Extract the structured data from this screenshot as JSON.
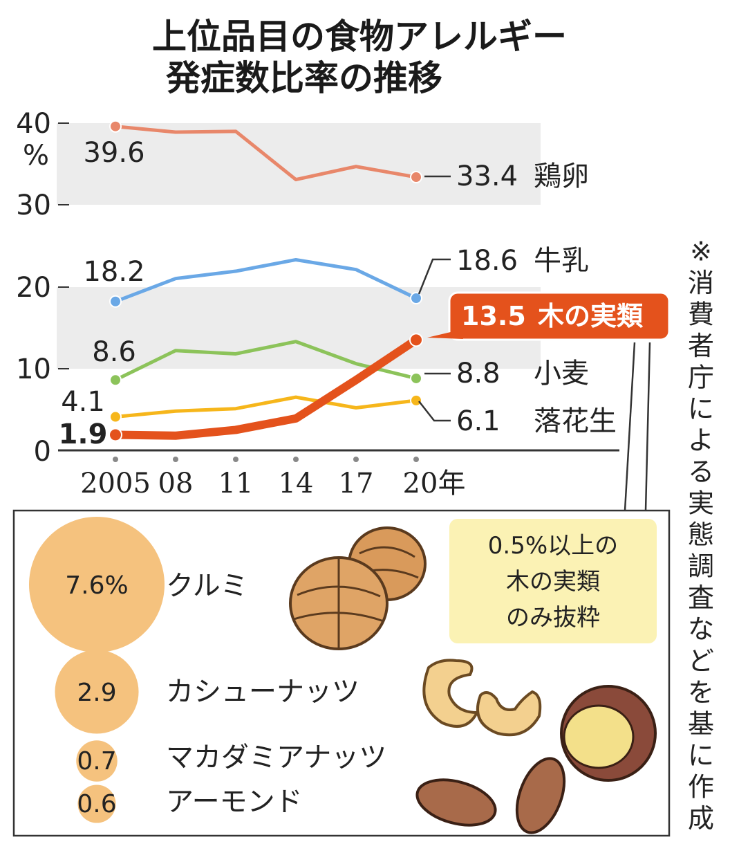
{
  "chart_data": {
    "type": "line",
    "title_lines": [
      "上位品目の食物アレルギー",
      "発症数比率の推移"
    ],
    "y_unit": "%",
    "y_ticks": [
      "0",
      "10",
      "20",
      "30",
      "40"
    ],
    "ylim": [
      0,
      40
    ],
    "x_labels": [
      "2005",
      "08",
      "11",
      "14",
      "17",
      "20年"
    ],
    "x": [
      2005,
      2008,
      2011,
      2014,
      2017,
      2020
    ],
    "series": [
      {
        "key": "egg",
        "name": "鶏卵",
        "color": "#e8876a",
        "values": [
          39.6,
          38.9,
          39.0,
          33.1,
          34.7,
          33.4
        ],
        "start_label": "39.6",
        "end_label": "33.4",
        "emphasis": false
      },
      {
        "key": "milk",
        "name": "牛乳",
        "color": "#6aa8e6",
        "values": [
          18.2,
          21.0,
          21.9,
          23.3,
          22.1,
          18.6
        ],
        "start_label": "18.2",
        "end_label": "18.6",
        "emphasis": false
      },
      {
        "key": "wheat",
        "name": "小麦",
        "color": "#8cc35a",
        "values": [
          8.6,
          12.2,
          11.8,
          13.3,
          10.6,
          8.8
        ],
        "start_label": "8.6",
        "end_label": "8.8",
        "emphasis": false
      },
      {
        "key": "peanut",
        "name": "落花生",
        "color": "#f6b61b",
        "values": [
          4.1,
          4.8,
          5.1,
          6.5,
          5.2,
          6.1
        ],
        "start_label": "4.1",
        "end_label": "6.1",
        "emphasis": false
      },
      {
        "key": "treenut",
        "name": "木の実類",
        "color": "#e4521c",
        "values": [
          1.9,
          1.8,
          2.5,
          3.9,
          8.6,
          13.5
        ],
        "start_label": "1.9",
        "end_label": "13.5",
        "emphasis": true
      }
    ],
    "tree_nuts": {
      "items": [
        {
          "name": "クルミ",
          "value": 7.6,
          "label": "7.6%"
        },
        {
          "name": "カシューナッツ",
          "value": 2.9,
          "label": "2.9"
        },
        {
          "name": "マカダミアナッツ",
          "value": 0.7,
          "label": "0.7"
        },
        {
          "name": "アーモンド",
          "value": 0.6,
          "label": "0.6"
        }
      ],
      "note_lines": [
        "0.5%以上の",
        "木の実類",
        "のみ抜粋"
      ],
      "bubble_color": "#f5c27e",
      "note_bg": "#fbf2b4"
    }
  },
  "source_note": "※消費者庁による実態調査などを基に作成"
}
